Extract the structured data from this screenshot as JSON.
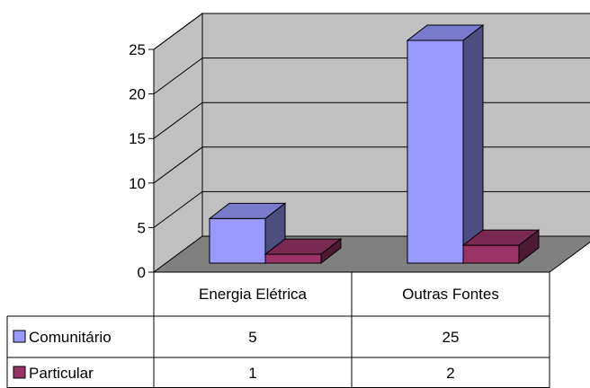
{
  "chart_data": {
    "type": "bar",
    "categories": [
      "Energia Elétrica",
      "Outras Fontes"
    ],
    "series": [
      {
        "name": "Comunitário",
        "values": [
          5,
          25
        ],
        "color": "#9999ff",
        "side_color": "#4d4d80",
        "top_color": "#7a7acc"
      },
      {
        "name": "Particular",
        "values": [
          1,
          2
        ],
        "color": "#993366",
        "side_color": "#4d1933",
        "top_color": "#7a2952"
      }
    ],
    "yticks": [
      "0",
      "5",
      "10",
      "15",
      "20",
      "25"
    ],
    "ylim": [
      0,
      25
    ],
    "data_table": true,
    "grid": true,
    "wall_color": "#c0c0c0",
    "floor_color": "#808080"
  }
}
